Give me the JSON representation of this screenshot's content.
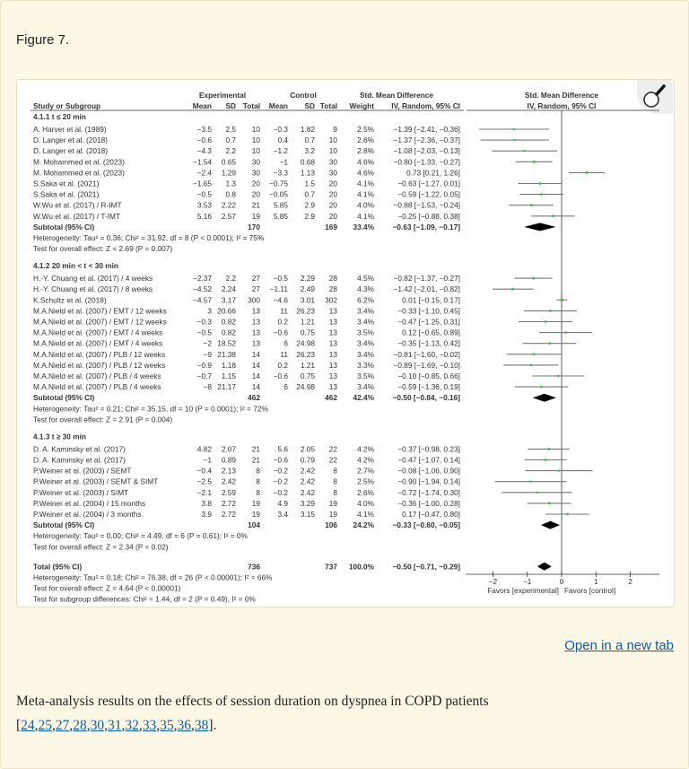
{
  "figure_label": "Figure 7.",
  "open_link": "Open in a new tab",
  "caption": {
    "text": "Meta-analysis results on the effects of session duration on dyspnea in COPD patients",
    "refs": [
      "24",
      "25",
      "27",
      "28",
      "30",
      "31",
      "32",
      "33",
      "35",
      "36",
      "38"
    ],
    "open_bracket": "[",
    "close": "]."
  },
  "colors": {
    "square": "#22cc33",
    "ci_line": "#777777",
    "diamond": "#000000",
    "link": "#0b5ea8"
  },
  "chart_data": {
    "type": "forest",
    "headers": {
      "study": "Study or Subgroup",
      "experimental": "Experimental",
      "control": "Control",
      "mean": "Mean",
      "sd": "SD",
      "total": "Total",
      "weight": "Weight",
      "smd_title": "Std. Mean Difference",
      "smd_method": "IV, Random, 95% CI"
    },
    "xaxis": {
      "ticks": [
        -2,
        -1,
        0,
        1,
        2
      ],
      "tick_labels": [
        "−2",
        "−1",
        "0",
        "1",
        "2"
      ],
      "left_label": "Favors [experimental]",
      "right_label": "Favors [control]",
      "range": [
        -2.7,
        2.9
      ]
    },
    "subgroups": [
      {
        "title": "4.1.1 t ≤ 20 min",
        "rows": [
          {
            "study": "A. Harver et al. (1989)",
            "em": "−3.5",
            "esd": "2.5",
            "et": "10",
            "cm": "−0.3",
            "csd": "1.82",
            "ct": "9",
            "weight": "2.5%",
            "ci": "−1.39 [−2.41, −0.36]",
            "smd": -1.39,
            "lo": -2.41,
            "hi": -0.36,
            "w": 2.5
          },
          {
            "study": "D. Langer et al. (2018)",
            "em": "−0.6",
            "esd": "0.7",
            "et": "10",
            "cm": "0.4",
            "csd": "0.7",
            "ct": "10",
            "weight": "2.6%",
            "ci": "−1.37 [−2.36, −0.37]",
            "smd": -1.37,
            "lo": -2.36,
            "hi": -0.37,
            "w": 2.6
          },
          {
            "study": "D. Langer et al. (2018)",
            "em": "−4.3",
            "esd": "2.2",
            "et": "10",
            "cm": "−1.2",
            "csd": "3.2",
            "ct": "10",
            "weight": "2.8%",
            "ci": "−1.08 [−2.03, −0.13]",
            "smd": -1.08,
            "lo": -2.03,
            "hi": -0.13,
            "w": 2.8
          },
          {
            "study": "M. Mohammed et al. (2023)",
            "em": "−1.54",
            "esd": "0.65",
            "et": "30",
            "cm": "−1",
            "csd": "0.68",
            "ct": "30",
            "weight": "4.6%",
            "ci": "−0.80 [−1.33, −0.27]",
            "smd": -0.8,
            "lo": -1.33,
            "hi": -0.27,
            "w": 4.6
          },
          {
            "study": "M. Mohammed et al. (2023)",
            "em": "−2.4",
            "esd": "1.29",
            "et": "30",
            "cm": "−3.3",
            "csd": "1.13",
            "ct": "30",
            "weight": "4.6%",
            "ci": "0.73 [0.21, 1.26]",
            "smd": 0.73,
            "lo": 0.21,
            "hi": 1.26,
            "w": 4.6
          },
          {
            "study": "S.Saka et al. (2021)",
            "em": "−1.65",
            "esd": "1.3",
            "et": "20",
            "cm": "−0.75",
            "csd": "1.5",
            "ct": "20",
            "weight": "4.1%",
            "ci": "−0.63 [−1.27, 0.01]",
            "smd": -0.63,
            "lo": -1.27,
            "hi": 0.01,
            "w": 4.1
          },
          {
            "study": "S.Saka et al. (2021)",
            "em": "−0.5",
            "esd": "0.8",
            "et": "20",
            "cm": "−0.05",
            "csd": "0.7",
            "ct": "20",
            "weight": "4.1%",
            "ci": "−0.59 [−1.22, 0.05]",
            "smd": -0.59,
            "lo": -1.22,
            "hi": 0.05,
            "w": 4.1
          },
          {
            "study": "W.Wu et al. (2017) / R-IMT",
            "em": "3.53",
            "esd": "2.22",
            "et": "21",
            "cm": "5.85",
            "csd": "2.9",
            "ct": "20",
            "weight": "4.0%",
            "ci": "−0.88 [−1.53, −0.24]",
            "smd": -0.88,
            "lo": -1.53,
            "hi": -0.24,
            "w": 4.0
          },
          {
            "study": "W.Wu et al. (2017) / T-IMT",
            "em": "5.16",
            "esd": "2.57",
            "et": "19",
            "cm": "5.85",
            "csd": "2.9",
            "ct": "20",
            "weight": "4.1%",
            "ci": "−0.25 [−0.88, 0.38]",
            "smd": -0.25,
            "lo": -0.88,
            "hi": 0.38,
            "w": 4.1
          }
        ],
        "subtotal": {
          "label": "Subtotal (95% CI)",
          "et": "170",
          "ct": "169",
          "weight": "33.4%",
          "ci": "−0.63 [−1.09, −0.17]",
          "smd": -0.63,
          "lo": -1.09,
          "hi": -0.17
        },
        "heterogeneity": "Heterogeneity: Tau² = 0.36; Chi² = 31.92, df = 8 (P < 0.0001); I² = 75%",
        "overall": "Test for overall effect: Z = 2.69 (P = 0.007)"
      },
      {
        "title": "4.1.2 20 min < t < 30 min",
        "rows": [
          {
            "study": "H.-Y. Chuang et al. (2017) / 4 weeks",
            "em": "−2.37",
            "esd": "2.2",
            "et": "27",
            "cm": "−0.5",
            "csd": "2.29",
            "ct": "28",
            "weight": "4.5%",
            "ci": "−0.82 [−1.37, −0.27]",
            "smd": -0.82,
            "lo": -1.37,
            "hi": -0.27,
            "w": 4.5
          },
          {
            "study": "H.-Y. Chuang et al. (2017) / 8 weeks",
            "em": "−4.52",
            "esd": "2.24",
            "et": "27",
            "cm": "−1.11",
            "csd": "2.49",
            "ct": "28",
            "weight": "4.3%",
            "ci": "−1.42 [−2.01, −0.82]",
            "smd": -1.42,
            "lo": -2.01,
            "hi": -0.82,
            "w": 4.3
          },
          {
            "study": "K.Schultz et al. (2018)",
            "em": "−4.57",
            "esd": "3.17",
            "et": "300",
            "cm": "−4.6",
            "csd": "3.01",
            "ct": "302",
            "weight": "6.2%",
            "ci": "0.01 [−0.15, 0.17]",
            "smd": 0.01,
            "lo": -0.15,
            "hi": 0.17,
            "w": 6.2
          },
          {
            "study": "M.A.Nield et al. (2007) / EMT / 12 weeks",
            "em": "3",
            "esd": "20.66",
            "et": "13",
            "cm": "11",
            "csd": "26.23",
            "ct": "13",
            "weight": "3.4%",
            "ci": "−0.33 [−1.10, 0.45]",
            "smd": -0.33,
            "lo": -1.1,
            "hi": 0.45,
            "w": 3.4
          },
          {
            "study": "M.A.Nield et al. (2007) / EMT / 12 weeks",
            "em": "−0.3",
            "esd": "0.82",
            "et": "13",
            "cm": "0.2",
            "csd": "1.21",
            "ct": "13",
            "weight": "3.4%",
            "ci": "−0.47 [−1.25, 0.31]",
            "smd": -0.47,
            "lo": -1.25,
            "hi": 0.31,
            "w": 3.4
          },
          {
            "study": "M.A.Nield et al. (2007) / EMT / 4 weeks",
            "em": "−0.5",
            "esd": "0.82",
            "et": "13",
            "cm": "−0.6",
            "csd": "0.75",
            "ct": "13",
            "weight": "3.5%",
            "ci": "0.12 [−0.65, 0.89]",
            "smd": 0.12,
            "lo": -0.65,
            "hi": 0.89,
            "w": 3.5
          },
          {
            "study": "M.A.Nield et al. (2007) / EMT / 4 weeks",
            "em": "−2",
            "esd": "18.52",
            "et": "13",
            "cm": "6",
            "csd": "24.98",
            "ct": "13",
            "weight": "3.4%",
            "ci": "−0.35 [−1.13, 0.42]",
            "smd": -0.35,
            "lo": -1.13,
            "hi": 0.42,
            "w": 3.4
          },
          {
            "study": "M.A.Nield et al. (2007) / PLB / 12 weeks",
            "em": "−9",
            "esd": "21.38",
            "et": "14",
            "cm": "11",
            "csd": "26.23",
            "ct": "13",
            "weight": "3.4%",
            "ci": "−0.81 [−1.60, −0.02]",
            "smd": -0.81,
            "lo": -1.6,
            "hi": -0.02,
            "w": 3.4
          },
          {
            "study": "M.A.Nield et al. (2007) / PLB / 12 weeks",
            "em": "−0.9",
            "esd": "1.18",
            "et": "14",
            "cm": "0.2",
            "csd": "1.21",
            "ct": "13",
            "weight": "3.3%",
            "ci": "−0.89 [−1.69, −0.10]",
            "smd": -0.89,
            "lo": -1.69,
            "hi": -0.1,
            "w": 3.3
          },
          {
            "study": "M.A.Nield et al. (2007) / PLB / 4 weeks",
            "em": "−0.7",
            "esd": "1.15",
            "et": "14",
            "cm": "−0.6",
            "csd": "0.75",
            "ct": "13",
            "weight": "3.5%",
            "ci": "−0.10 [−0.85, 0.66]",
            "smd": -0.1,
            "lo": -0.85,
            "hi": 0.66,
            "w": 3.5
          },
          {
            "study": "M.A.Nield et al. (2007) / PLB / 4 weeks",
            "em": "−8",
            "esd": "21.17",
            "et": "14",
            "cm": "6",
            "csd": "24.98",
            "ct": "13",
            "weight": "3.4%",
            "ci": "−0.59 [−1.36, 0.19]",
            "smd": -0.59,
            "lo": -1.36,
            "hi": 0.19,
            "w": 3.4
          }
        ],
        "subtotal": {
          "label": "Subtotal (95% CI)",
          "et": "462",
          "ct": "462",
          "weight": "42.4%",
          "ci": "−0.50 [−0.84, −0.16]",
          "smd": -0.5,
          "lo": -0.84,
          "hi": -0.16
        },
        "heterogeneity": "Heterogeneity: Tau² = 0.21; Chi² = 35.15, df = 10 (P = 0.0001); I² = 72%",
        "overall": "Test for overall effect: Z = 2.91 (P = 0.004)"
      },
      {
        "title": "4.1.3 t ≥ 30 min",
        "rows": [
          {
            "study": "D. A. Kaminsky et al. (2017)",
            "em": "4.82",
            "esd": "2.07",
            "et": "21",
            "cm": "5.6",
            "csd": "2.05",
            "ct": "22",
            "weight": "4.2%",
            "ci": "−0.37 [−0.98, 0.23]",
            "smd": -0.37,
            "lo": -0.98,
            "hi": 0.23,
            "w": 4.2
          },
          {
            "study": "D. A. Kaminsky et al. (2017)",
            "em": "−1",
            "esd": "0.89",
            "et": "21",
            "cm": "−0.6",
            "csd": "0.79",
            "ct": "22",
            "weight": "4.2%",
            "ci": "−0.47 [−1.07, 0.14]",
            "smd": -0.47,
            "lo": -1.07,
            "hi": 0.14,
            "w": 4.2
          },
          {
            "study": "P.Weiner et al. (2003) / SEMT",
            "em": "−0.4",
            "esd": "2.13",
            "et": "8",
            "cm": "−0.2",
            "csd": "2.42",
            "ct": "8",
            "weight": "2.7%",
            "ci": "−0.08 [−1.06, 0.90]",
            "smd": -0.08,
            "lo": -1.06,
            "hi": 0.9,
            "w": 2.7
          },
          {
            "study": "P.Weiner et al. (2003) / SEMT & SIMT",
            "em": "−2.5",
            "esd": "2.42",
            "et": "8",
            "cm": "−0.2",
            "csd": "2.42",
            "ct": "8",
            "weight": "2.5%",
            "ci": "−0.90 [−1.94, 0.14]",
            "smd": -0.9,
            "lo": -1.94,
            "hi": 0.14,
            "w": 2.5
          },
          {
            "study": "P.Weiner et al. (2003) / SIMT",
            "em": "−2.1",
            "esd": "2.59",
            "et": "8",
            "cm": "−0.2",
            "csd": "2.42",
            "ct": "8",
            "weight": "2.6%",
            "ci": "−0.72 [−1.74, 0.30]",
            "smd": -0.72,
            "lo": -1.74,
            "hi": 0.3,
            "w": 2.6
          },
          {
            "study": "P.Weiner et al. (2004) / 15 months",
            "em": "3.8",
            "esd": "2.72",
            "et": "19",
            "cm": "4.9",
            "csd": "3.29",
            "ct": "19",
            "weight": "4.0%",
            "ci": "−0.36 [−1.00, 0.28]",
            "smd": -0.36,
            "lo": -1.0,
            "hi": 0.28,
            "w": 4.0
          },
          {
            "study": "P.Weiner et al. (2004) / 3 months",
            "em": "3.9",
            "esd": "2.72",
            "et": "19",
            "cm": "3.4",
            "csd": "3.15",
            "ct": "19",
            "weight": "4.1%",
            "ci": "0.17 [−0.47, 0.80]",
            "smd": 0.17,
            "lo": -0.47,
            "hi": 0.8,
            "w": 4.1
          }
        ],
        "subtotal": {
          "label": "Subtotal (95% CI)",
          "et": "104",
          "ct": "106",
          "weight": "24.2%",
          "ci": "−0.33 [−0.60, −0.05]",
          "smd": -0.33,
          "lo": -0.6,
          "hi": -0.05
        },
        "heterogeneity": "Heterogeneity: Tau² = 0.00; Chi² = 4.49, df = 6 (P = 0.61); I² = 0%",
        "overall": "Test for overall effect: Z = 2.34 (P = 0.02)"
      }
    ],
    "total": {
      "label": "Total (95% CI)",
      "et": "736",
      "ct": "737",
      "weight": "100.0%",
      "ci": "−0.50 [−0.71, −0.29]",
      "smd": -0.5,
      "lo": -0.71,
      "hi": -0.29,
      "heterogeneity": "Heterogeneity: Tau² = 0.18; Chi² = 76.38, df = 26 (P < 0.00001); I² = 66%",
      "overall": "Test for overall effect: Z = 4.64 (P < 0.00001)",
      "subgroup_diff": "Test for subgroup differences: Chi² = 1.44, df = 2 (P = 0.49), I² = 0%"
    }
  }
}
